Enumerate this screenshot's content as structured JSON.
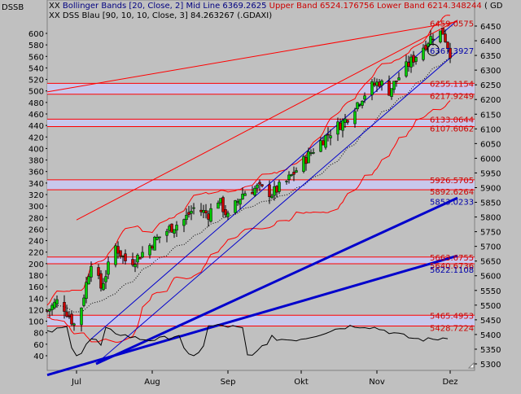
{
  "chart_data": {
    "type": "line",
    "title_left": "DSSB",
    "legend": [
      {
        "prefix": "XX",
        "name": "Bollinger Bands",
        "params": "[20, Close, 2]",
        "mid_text": "Mid Line 6369.2625",
        "upper_text": "Upper Band 6524.176756",
        "lower_text": "Lower Band 6214.348244",
        "suffix": "( GD"
      },
      {
        "prefix": "XX",
        "name": "DSS Blau",
        "params": "[90, 10, 10, Close, 3]",
        "value_text": "84.263267",
        "symbol": "(.GDAXI)"
      }
    ],
    "x_labels": [
      {
        "label": "Jul",
        "day": 12
      },
      {
        "label": "Aug",
        "day": 43
      },
      {
        "label": "Sep",
        "day": 74
      },
      {
        "label": "Okt",
        "day": 104
      },
      {
        "label": "Nov",
        "day": 135
      },
      {
        "label": "Dez",
        "day": 165
      }
    ],
    "price_axis": {
      "min": 5300,
      "max": 6450,
      "ticks": [
        6450,
        6400,
        6350,
        6300,
        6250,
        6200,
        6150,
        6100,
        6050,
        6000,
        5950,
        5900,
        5850,
        5800,
        5750,
        5700,
        5650,
        5600,
        5550,
        5500,
        5450,
        5400,
        5350,
        5300
      ]
    },
    "osc_axis": {
      "min": 40,
      "max": 600,
      "ticks": [
        600,
        580,
        560,
        540,
        520,
        500,
        480,
        460,
        440,
        420,
        400,
        380,
        360,
        340,
        320,
        300,
        280,
        260,
        240,
        220,
        200,
        180,
        160,
        140,
        120,
        100,
        80,
        60,
        40
      ]
    },
    "level_zones": [
      {
        "top": 5926.5705,
        "bottom": 5892.6264,
        "top_label": "5926.5705",
        "bottom_label": "5892.6264"
      },
      {
        "top": 5663.6755,
        "bottom": 5640.6736,
        "top_label": "5663.6755",
        "bottom_label": "5640.6736"
      },
      {
        "top": 6255.1154,
        "bottom": 6217.9249,
        "top_label": "6255.1154",
        "bottom_label": "6217.9249"
      },
      {
        "top": 6133.0644,
        "bottom": 6107.6062,
        "top_label": "6133.0644",
        "bottom_label": "6107.6062"
      },
      {
        "top": 5465.4953,
        "bottom": 5428.7224,
        "top_label": "5465.4953",
        "bottom_label": "5428.7224"
      }
    ],
    "red_labels": [
      {
        "value": 6459.0575,
        "label": "6459.0575"
      }
    ],
    "blue_labels": [
      {
        "value": 6367.3927,
        "label": "6367.3927"
      },
      {
        "value": 5853.0233,
        "label": "5853.0233"
      },
      {
        "value": 5622.1108,
        "label": "5622.1108"
      }
    ],
    "trend_lines": [
      {
        "color": "#0000cc",
        "width": 3,
        "d1": 0,
        "p1": 5262,
        "d2": 168,
        "p2": 5668
      },
      {
        "color": "#0000cc",
        "width": 3,
        "d1": 20,
        "p1": 5300,
        "d2": 168,
        "p2": 5865
      },
      {
        "color": "#0000cc",
        "width": 1,
        "d1": 20,
        "p1": 5300,
        "d2": 168,
        "p2": 6363
      },
      {
        "color": "#0000cc",
        "width": 1,
        "d1": 18,
        "p1": 5385,
        "d2": 168,
        "p2": 6470
      },
      {
        "color": "#ff0000",
        "width": 1,
        "d1": 0,
        "p1": 6226,
        "d2": 168,
        "p2": 6465
      },
      {
        "color": "#ff0000",
        "width": 1,
        "d1": 12,
        "p1": 5790,
        "d2": 168,
        "p2": 6470
      }
    ],
    "circle_marker": {
      "day": 158,
      "value": 6369
    }
  }
}
